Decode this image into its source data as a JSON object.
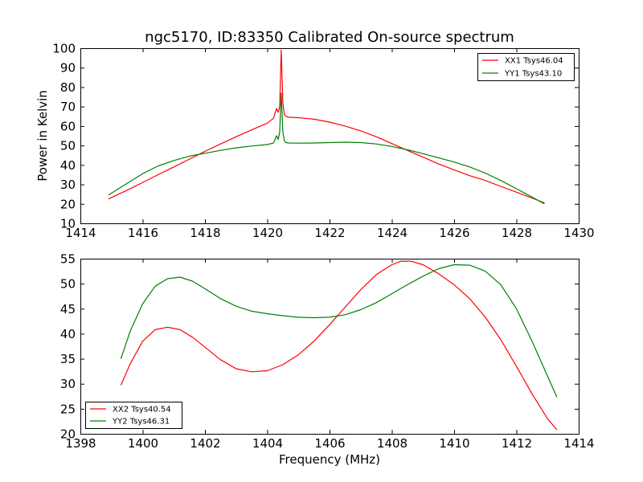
{
  "chart_data": [
    {
      "type": "line",
      "title": "ngc5170, ID:83350 Calibrated On-source spectrum",
      "xlabel": "",
      "ylabel": "Power in Kelvin",
      "xlim": [
        1414,
        1430
      ],
      "ylim": [
        10,
        100
      ],
      "xticks": [
        "1414",
        "1416",
        "1418",
        "1420",
        "1422",
        "1424",
        "1426",
        "1428",
        "1430"
      ],
      "yticks": [
        "10",
        "20",
        "30",
        "40",
        "50",
        "60",
        "70",
        "80",
        "90",
        "100"
      ],
      "legend_position": "top-right",
      "series": [
        {
          "name": "XX1 Tsys46.04",
          "color": "#ff0000",
          "x": [
            1414.9,
            1415.5,
            1416.0,
            1416.5,
            1417.0,
            1417.5,
            1418.0,
            1418.5,
            1419.0,
            1419.5,
            1420.0,
            1420.2,
            1420.3,
            1420.35,
            1420.4,
            1420.45,
            1420.5,
            1420.55,
            1420.6,
            1420.7,
            1421.0,
            1421.5,
            1422.0,
            1422.5,
            1423.0,
            1423.5,
            1424.0,
            1424.5,
            1425.0,
            1425.5,
            1426.0,
            1426.5,
            1427.0,
            1427.5,
            1428.0,
            1428.5,
            1428.9
          ],
          "values": [
            22.5,
            27.0,
            31.0,
            35.0,
            39.0,
            43.0,
            47.0,
            50.8,
            54.5,
            58.0,
            61.5,
            64.0,
            69.0,
            67.0,
            70.0,
            99.0,
            72.0,
            66.0,
            65.0,
            64.5,
            64.3,
            63.5,
            62.0,
            60.0,
            57.5,
            54.5,
            51.0,
            47.5,
            44.0,
            40.5,
            37.5,
            34.5,
            32.0,
            29.0,
            26.0,
            23.0,
            20.5
          ]
        },
        {
          "name": "YY1 Tsys43.10",
          "color": "#008000",
          "x": [
            1414.9,
            1415.5,
            1416.0,
            1416.5,
            1417.0,
            1417.5,
            1418.0,
            1418.5,
            1419.0,
            1419.5,
            1420.0,
            1420.2,
            1420.3,
            1420.35,
            1420.4,
            1420.45,
            1420.5,
            1420.55,
            1420.6,
            1420.7,
            1421.0,
            1421.5,
            1422.0,
            1422.5,
            1423.0,
            1423.5,
            1424.0,
            1424.5,
            1425.0,
            1425.5,
            1426.0,
            1426.5,
            1427.0,
            1427.5,
            1428.0,
            1428.5,
            1428.9
          ],
          "values": [
            24.5,
            30.5,
            35.5,
            39.5,
            42.3,
            44.5,
            46.0,
            47.5,
            48.8,
            49.7,
            50.5,
            51.3,
            55.0,
            53.0,
            57.0,
            77.0,
            57.0,
            52.5,
            51.5,
            51.3,
            51.2,
            51.3,
            51.5,
            51.7,
            51.5,
            50.8,
            49.5,
            47.8,
            45.8,
            43.7,
            41.5,
            39.0,
            35.8,
            32.0,
            27.8,
            23.5,
            20.0
          ]
        }
      ]
    },
    {
      "type": "line",
      "title": "",
      "xlabel": "Frequency (MHz)",
      "ylabel": "",
      "xlim": [
        1398,
        1414
      ],
      "ylim": [
        20,
        55
      ],
      "xticks": [
        "1398",
        "1400",
        "1402",
        "1404",
        "1406",
        "1408",
        "1410",
        "1412",
        "1414"
      ],
      "yticks": [
        "20",
        "25",
        "30",
        "35",
        "40",
        "45",
        "50",
        "55"
      ],
      "legend_position": "bottom-left",
      "series": [
        {
          "name": "XX2 Tsys40.54",
          "color": "#ff0000",
          "x": [
            1399.3,
            1399.6,
            1400.0,
            1400.4,
            1400.8,
            1401.2,
            1401.6,
            1402.0,
            1402.5,
            1403.0,
            1403.5,
            1404.0,
            1404.5,
            1405.0,
            1405.5,
            1406.0,
            1406.5,
            1407.0,
            1407.5,
            1408.0,
            1408.3,
            1408.6,
            1409.0,
            1409.5,
            1410.0,
            1410.5,
            1411.0,
            1411.5,
            1412.0,
            1412.5,
            1413.0,
            1413.3
          ],
          "values": [
            29.7,
            34.0,
            38.5,
            40.8,
            41.3,
            40.8,
            39.3,
            37.3,
            34.8,
            33.0,
            32.4,
            32.6,
            33.8,
            35.8,
            38.5,
            41.8,
            45.3,
            48.8,
            51.8,
            53.8,
            54.5,
            54.5,
            53.8,
            52.0,
            49.8,
            47.0,
            43.3,
            38.8,
            33.5,
            28.0,
            23.0,
            20.8
          ]
        },
        {
          "name": "YY2 Tsys46.31",
          "color": "#008000",
          "x": [
            1399.3,
            1399.6,
            1400.0,
            1400.4,
            1400.8,
            1401.2,
            1401.6,
            1402.0,
            1402.5,
            1403.0,
            1403.5,
            1404.0,
            1404.5,
            1405.0,
            1405.5,
            1406.0,
            1406.5,
            1407.0,
            1407.5,
            1408.0,
            1408.5,
            1409.0,
            1409.5,
            1410.0,
            1410.5,
            1411.0,
            1411.5,
            1412.0,
            1412.5,
            1413.0,
            1413.3
          ],
          "values": [
            35.0,
            40.5,
            46.0,
            49.5,
            51.0,
            51.3,
            50.5,
            49.0,
            47.0,
            45.5,
            44.5,
            44.0,
            43.6,
            43.3,
            43.2,
            43.3,
            43.8,
            44.8,
            46.2,
            48.0,
            49.8,
            51.5,
            53.0,
            53.8,
            53.7,
            52.5,
            49.8,
            45.0,
            38.5,
            31.5,
            27.3
          ]
        }
      ]
    }
  ]
}
